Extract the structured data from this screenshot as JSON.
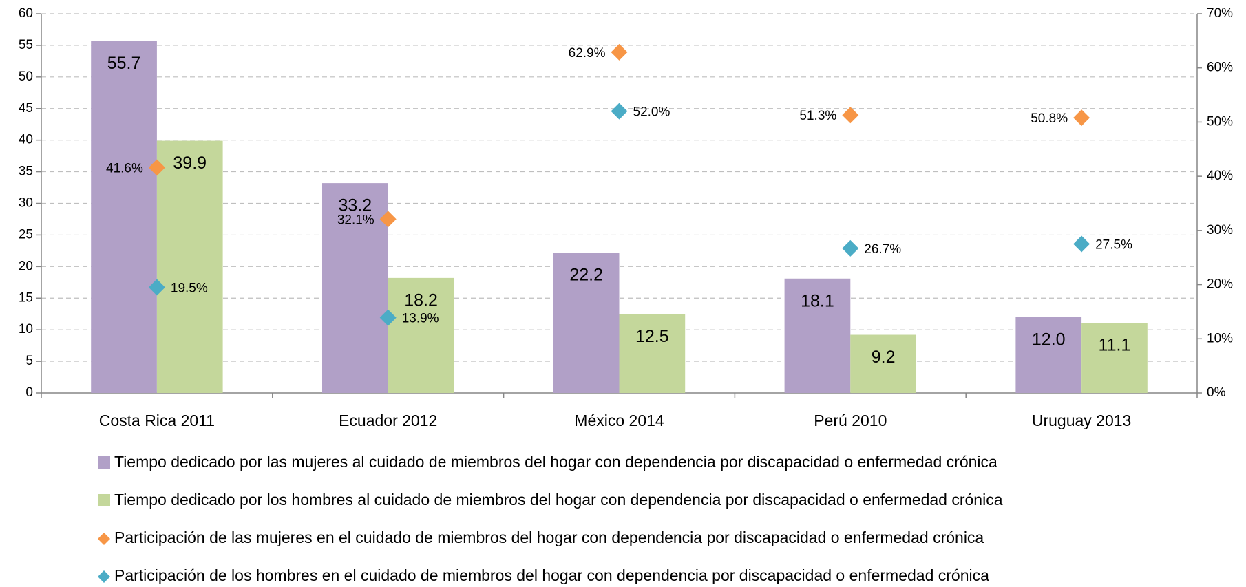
{
  "chart_data": {
    "type": "bar",
    "categories": [
      "Costa Rica 2011",
      "Ecuador 2012",
      "México 2014",
      "Perú 2010",
      "Uruguay 2013"
    ],
    "series": [
      {
        "name": "Tiempo dedicado por las mujeres al cuidado de miembros del hogar con dependencia por discapacidad o enfermedad crónica",
        "type": "bar",
        "color": "#b1a0c7",
        "values": [
          55.7,
          33.2,
          22.2,
          18.1,
          12.0
        ],
        "value_labels": [
          "55.7",
          "33.2",
          "22.2",
          "18.1",
          "12.0"
        ]
      },
      {
        "name": "Tiempo dedicado por los hombres al cuidado de miembros del hogar con dependencia por discapacidad o enfermedad crónica",
        "type": "bar",
        "color": "#c4d79b",
        "values": [
          39.9,
          18.2,
          12.5,
          9.2,
          11.1
        ]
      },
      {
        "name": "Participación de las mujeres en el  cuidado de miembros del hogar con dependencia por discapacidad o enfermedad crónica",
        "type": "scatter",
        "axis": "y2",
        "color": "#f79646",
        "values": [
          41.6,
          32.1,
          62.9,
          51.3,
          50.8
        ],
        "value_labels": [
          "41.6%",
          "32.1%",
          "62.9%",
          "51.3%",
          "50.8%"
        ]
      },
      {
        "name": "Participación de los hombres en el  cuidado de miembros del hogar con dependencia por discapacidad o enfermedad crónica",
        "type": "scatter",
        "axis": "y2",
        "color": "#4bacc6",
        "values": [
          19.5,
          13.9,
          52.0,
          26.7,
          27.5
        ],
        "value_labels": [
          "19.5%",
          "13.9%",
          "52.0%",
          "26.7%",
          "27.5%"
        ]
      }
    ],
    "ylim": [
      0,
      60
    ],
    "yticks": [
      0,
      5,
      10,
      15,
      20,
      25,
      30,
      35,
      40,
      45,
      50,
      55,
      60
    ],
    "y2lim": [
      0,
      70
    ],
    "y2ticks": [
      {
        "value": 0,
        "label": "0%"
      },
      {
        "value": 10,
        "label": "10%"
      },
      {
        "value": 20,
        "label": "20%"
      },
      {
        "value": 30,
        "label": "30%"
      },
      {
        "value": 40,
        "label": "40%"
      },
      {
        "value": 50,
        "label": "50%"
      },
      {
        "value": 60,
        "label": "60%"
      },
      {
        "value": 70,
        "label": "70%"
      }
    ],
    "grid": true
  }
}
